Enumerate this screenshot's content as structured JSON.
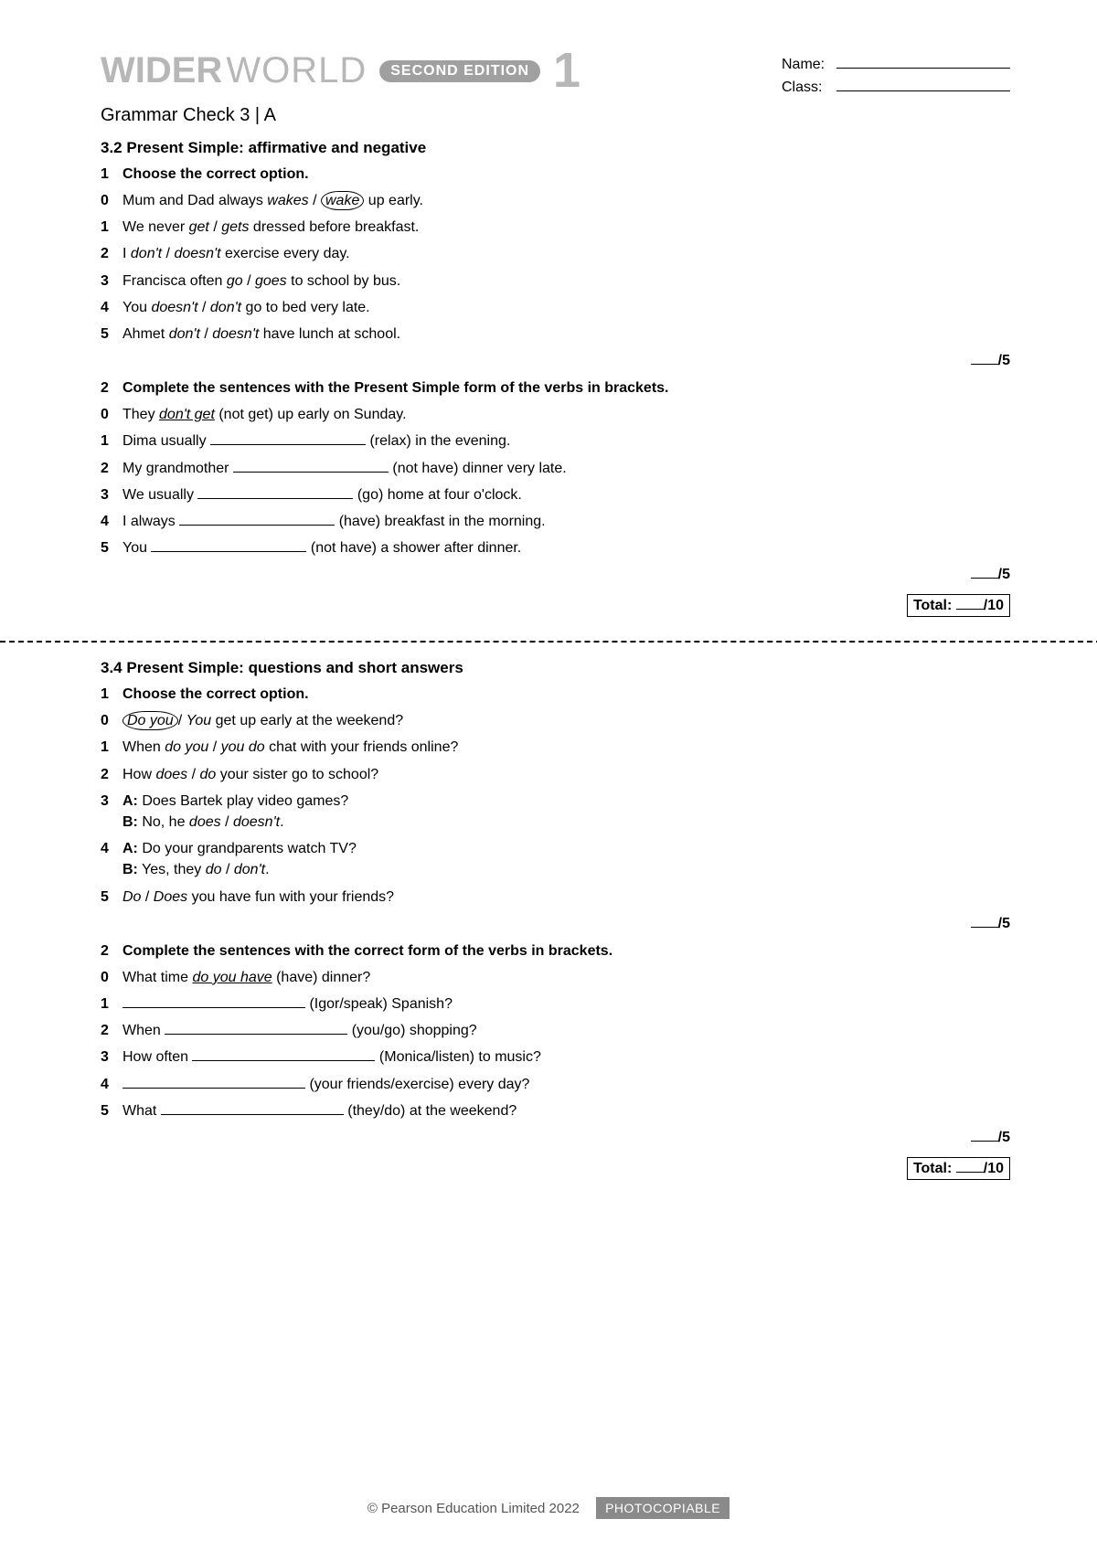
{
  "brand": {
    "wider": "WIDER",
    "world": "WORLD",
    "edition": "SECOND EDITION",
    "level": "1"
  },
  "nameclass": {
    "name_label": "Name:",
    "class_label": "Class:"
  },
  "subheader": "Grammar Check 3 | A",
  "sectionA": {
    "title": "3.2 Present Simple: affirmative and negative",
    "ex1": {
      "num": "1",
      "instr": "Choose the correct option.",
      "items": [
        {
          "n": "0",
          "pre": "Mum and Dad always ",
          "opt1": "wakes",
          "sep": " / ",
          "circled": "wake",
          "post": " up early."
        },
        {
          "n": "1",
          "text_html": "We never <i>get</i> / <i>gets</i> dressed before breakfast."
        },
        {
          "n": "2",
          "text_html": "I <i>don't</i> / <i>doesn't</i> exercise every day."
        },
        {
          "n": "3",
          "text_html": "Francisca often <i>go</i> / <i>goes</i> to school by bus."
        },
        {
          "n": "4",
          "text_html": "You <i>doesn't</i> / <i>don't</i> go to bed very late."
        },
        {
          "n": "5",
          "text_html": "Ahmet <i>don't</i> / <i>doesn't</i> have lunch at school."
        }
      ],
      "score": "/5"
    },
    "ex2": {
      "num": "2",
      "instr": "Complete the sentences with the Present Simple form of the verbs in brackets.",
      "items": [
        {
          "n": "0",
          "pre": "They ",
          "ans": "don't get",
          "post": " (not get) up early on Sunday."
        },
        {
          "n": "1",
          "pre": "Dima usually ",
          "post": " (relax) in the evening."
        },
        {
          "n": "2",
          "pre": "My grandmother ",
          "post": " (not have) dinner very late."
        },
        {
          "n": "3",
          "pre": "We usually ",
          "post": " (go) home at four o'clock."
        },
        {
          "n": "4",
          "pre": "I always ",
          "post": " (have) breakfast in the morning."
        },
        {
          "n": "5",
          "pre": "You ",
          "post": " (not have) a shower after dinner."
        }
      ],
      "score": "/5",
      "total_label": "Total:",
      "total_score": "/10"
    }
  },
  "sectionB": {
    "title": "3.4 Present Simple: questions and short answers",
    "ex1": {
      "num": "1",
      "instr": "Choose the correct option.",
      "items": [
        {
          "n": "0",
          "circled": "Do you",
          "sep": "/ ",
          "opt2": "You",
          "post": " get up early at the weekend?"
        },
        {
          "n": "1",
          "text_html": "When <i>do you</i> / <i>you do</i> chat with your friends online?"
        },
        {
          "n": "2",
          "text_html": "How <i>does</i> / <i>do</i> your sister go to school?"
        },
        {
          "n": "3",
          "text_html": "<b>A:</b> Does Bartek play video games?<br><b>B:</b> No, he <i>does</i> / <i>doesn't</i>."
        },
        {
          "n": "4",
          "text_html": "<b>A:</b> Do your grandparents watch TV?<br><b>B:</b> Yes, they <i>do</i> / <i>don't</i>."
        },
        {
          "n": "5",
          "text_html": "<i>Do</i> / <i>Does</i> you have fun with your friends?"
        }
      ],
      "score": "/5"
    },
    "ex2": {
      "num": "2",
      "instr": "Complete the sentences with the correct form of the verbs in brackets.",
      "items": [
        {
          "n": "0",
          "pre": "What time ",
          "ans": "do you have",
          "post": " (have) dinner?"
        },
        {
          "n": "1",
          "pre": "",
          "post": " (Igor/speak) Spanish?"
        },
        {
          "n": "2",
          "pre": "When ",
          "post": " (you/go) shopping?"
        },
        {
          "n": "3",
          "pre": "How often ",
          "post": " (Monica/listen) to music?"
        },
        {
          "n": "4",
          "pre": "",
          "post": " (your friends/exercise) every day?"
        },
        {
          "n": "5",
          "pre": "What ",
          "post": " (they/do) at the weekend?"
        }
      ],
      "score": "/5",
      "total_label": "Total:",
      "total_score": "/10"
    }
  },
  "footer": {
    "copyright": "© Pearson Education Limited 2022",
    "photocopy": "PHOTOCOPIABLE"
  }
}
